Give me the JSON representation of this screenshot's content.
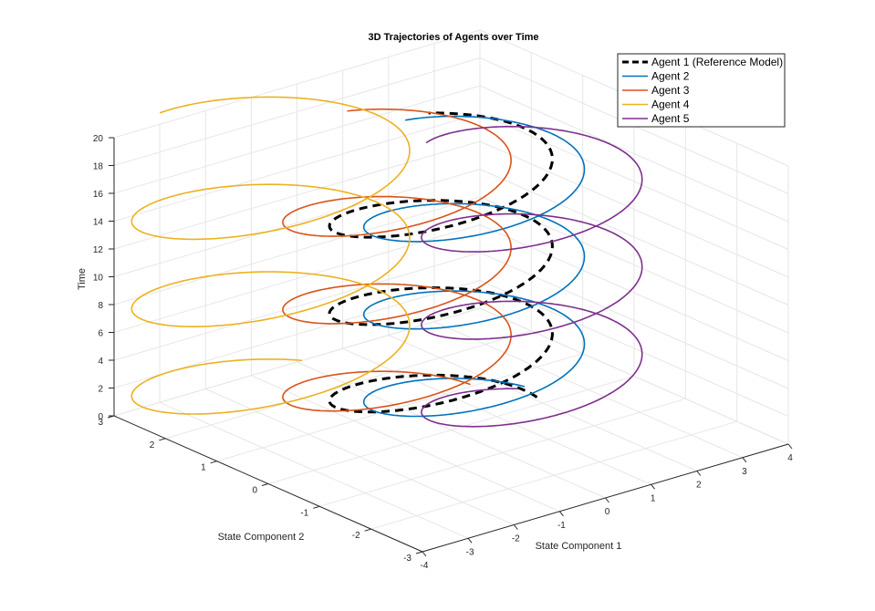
{
  "chart_data": {
    "type": "line",
    "projection": "3d",
    "title": "3D Trajectories of Agents over Time",
    "axes": {
      "x": {
        "label": "State Component 1",
        "range": [
          -4,
          4
        ],
        "ticks": [
          "-4",
          "-3",
          "-2",
          "-1",
          "0",
          "1",
          "2",
          "3",
          "4"
        ],
        "tick_values": [
          -4,
          -3,
          -2,
          -1,
          0,
          1,
          2,
          3,
          4
        ]
      },
      "y": {
        "label": "State Component 2",
        "range": [
          -3,
          3
        ],
        "ticks": [
          "-3",
          "-2",
          "-1",
          "0",
          "1",
          "2",
          "3"
        ],
        "tick_values": [
          -3,
          -2,
          -1,
          0,
          1,
          2,
          3
        ]
      },
      "z": {
        "label": "Time",
        "range": [
          0,
          20
        ],
        "ticks": [
          "0",
          "2",
          "4",
          "6",
          "8",
          "10",
          "12",
          "14",
          "16",
          "18",
          "20"
        ],
        "tick_values": [
          0,
          2,
          4,
          6,
          8,
          10,
          12,
          14,
          16,
          18,
          20
        ]
      }
    },
    "grid": true,
    "legend_position": "top-right",
    "series": [
      {
        "name": "Agent 1 (Reference Model)",
        "color": "#000000",
        "dashed": true,
        "cx": 0.0,
        "cy": 0.2,
        "rx": 2.1,
        "ry": 1.1,
        "phase": 0.0
      },
      {
        "name": "Agent 2",
        "color": "#0072BD",
        "dashed": false,
        "cx": 0.5,
        "cy": 0.0,
        "rx": 2.0,
        "ry": 1.2,
        "phase": 0.5
      },
      {
        "name": "Agent 3",
        "color": "#D95319",
        "dashed": false,
        "cx": -0.4,
        "cy": 0.7,
        "rx": 2.1,
        "ry": 1.2,
        "phase": 0.3
      },
      {
        "name": "Agent 4",
        "color": "#EDB120",
        "dashed": false,
        "cx": -1.7,
        "cy": 2.0,
        "rx": 2.6,
        "ry": 1.4,
        "phase": 0.8
      },
      {
        "name": "Agent 5",
        "color": "#7E2F8E",
        "dashed": false,
        "cx": 1.2,
        "cy": -0.5,
        "rx": 2.0,
        "ry": 1.2,
        "phase": 1.1
      }
    ],
    "t_range": [
      0,
      20
    ],
    "angular_frequency": 1.0
  }
}
